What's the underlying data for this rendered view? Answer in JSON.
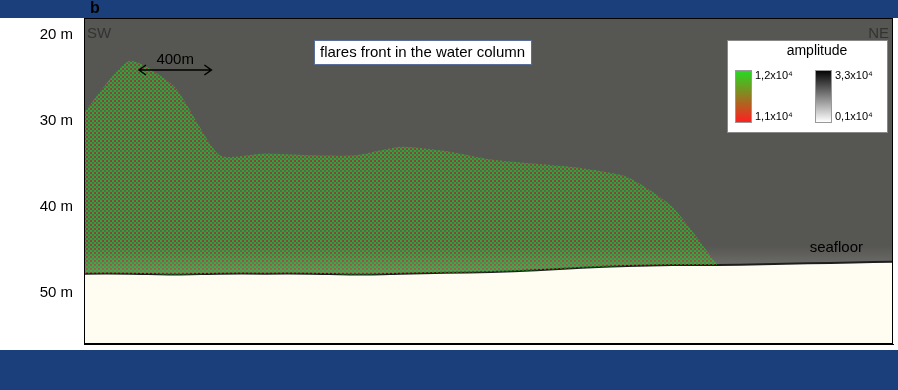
{
  "chart_data": {
    "type": "line",
    "title": "b",
    "x": [
      0,
      250,
      500,
      750,
      1000,
      1250,
      1500,
      1750,
      2000,
      2250,
      2500,
      2750,
      3000,
      3250,
      3500,
      3750,
      4000,
      4250,
      4470
    ],
    "series": [
      {
        "color": "#22dd22",
        "values": [
          29,
          23,
          26,
          34,
          33.8,
          34,
          34,
          33,
          33.5,
          34.5,
          35,
          35.5,
          36.5,
          40,
          46.8,
          null,
          null,
          null,
          null
        ]
      },
      {
        "color": "#1e1e1e",
        "values": [
          47.8,
          47.8,
          47.9,
          47.8,
          47.8,
          47.8,
          47.9,
          47.8,
          47.7,
          47.6,
          47.4,
          47.1,
          46.9,
          46.8,
          46.8,
          46.7,
          46.6,
          46.5,
          46.4
        ]
      }
    ],
    "xlim": [
      0,
      4470
    ],
    "ylim": [
      18,
      56
    ],
    "yticks": [
      {
        "value": 20,
        "label": "20 m"
      },
      {
        "value": 30,
        "label": "30 m"
      },
      {
        "value": 40,
        "label": "40 m"
      },
      {
        "value": 50,
        "label": "50 m"
      }
    ],
    "tick_labels": "y",
    "grid": false,
    "annotations": {
      "left": "SW",
      "right": "NE",
      "scale_bar": {
        "label": "400m",
        "length": 400
      },
      "flares": "flares front in the water column",
      "seafloor": "seafloor"
    },
    "colorbars": {
      "title": "amplitude",
      "bars": [
        {
          "colors": [
            "#ff2020",
            "#22dd22"
          ],
          "range": [
            11000,
            12000
          ],
          "ticks": [
            {
              "value": 12000,
              "label": "1,2x10⁴"
            },
            {
              "value": 11000,
              "label": "1,1x10⁴"
            }
          ]
        },
        {
          "colors": [
            "#ffffff",
            "#000000"
          ],
          "range": [
            1000,
            33000
          ],
          "ticks": [
            {
              "value": 33000,
              "label": "3,3x10⁴"
            },
            {
              "value": 1000,
              "label": "0,1x10⁴"
            }
          ]
        }
      ]
    }
  }
}
